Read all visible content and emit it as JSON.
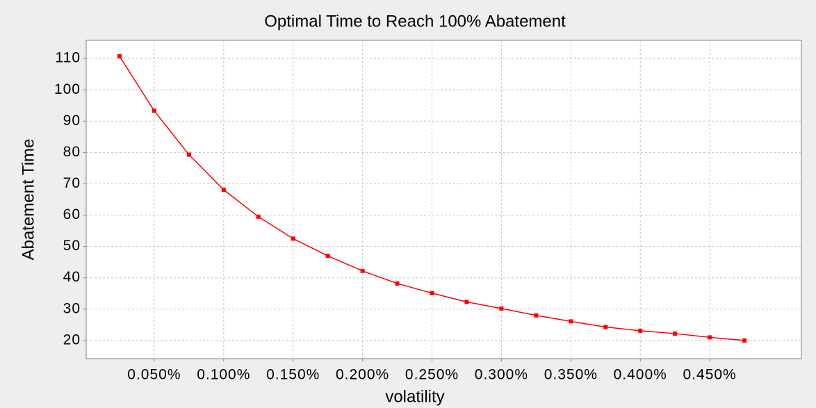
{
  "chart_data": {
    "type": "line",
    "title": "Optimal Time to Reach 100% Abatement",
    "xlabel": "volatility",
    "ylabel": "Abatement Time",
    "x": [
      0.025,
      0.05,
      0.075,
      0.1,
      0.125,
      0.15,
      0.175,
      0.2,
      0.225,
      0.25,
      0.275,
      0.3,
      0.325,
      0.35,
      0.375,
      0.4,
      0.425,
      0.45,
      0.475
    ],
    "series": [
      {
        "name": "Abatement Time",
        "color": "#ff0000",
        "values": [
          110.7,
          93.3,
          79.3,
          68.1,
          59.5,
          52.5,
          47,
          42.2,
          38.2,
          35.1,
          32.3,
          30.2,
          28,
          26.1,
          24.3,
          23.1,
          22.2,
          21,
          20
        ]
      }
    ],
    "xlim": [
      0.001,
      0.516
    ],
    "ylim": [
      14.2,
      115.8
    ],
    "xticks": [
      {
        "value": 0.05,
        "label": "0.050%"
      },
      {
        "value": 0.1,
        "label": "0.100%"
      },
      {
        "value": 0.15,
        "label": "0.150%"
      },
      {
        "value": 0.2,
        "label": "0.200%"
      },
      {
        "value": 0.25,
        "label": "0.250%"
      },
      {
        "value": 0.3,
        "label": "0.300%"
      },
      {
        "value": 0.35,
        "label": "0.350%"
      },
      {
        "value": 0.4,
        "label": "0.400%"
      },
      {
        "value": 0.45,
        "label": "0.450%"
      }
    ],
    "yticks": [
      20,
      30,
      40,
      50,
      60,
      70,
      80,
      90,
      100,
      110
    ],
    "grid": true
  }
}
